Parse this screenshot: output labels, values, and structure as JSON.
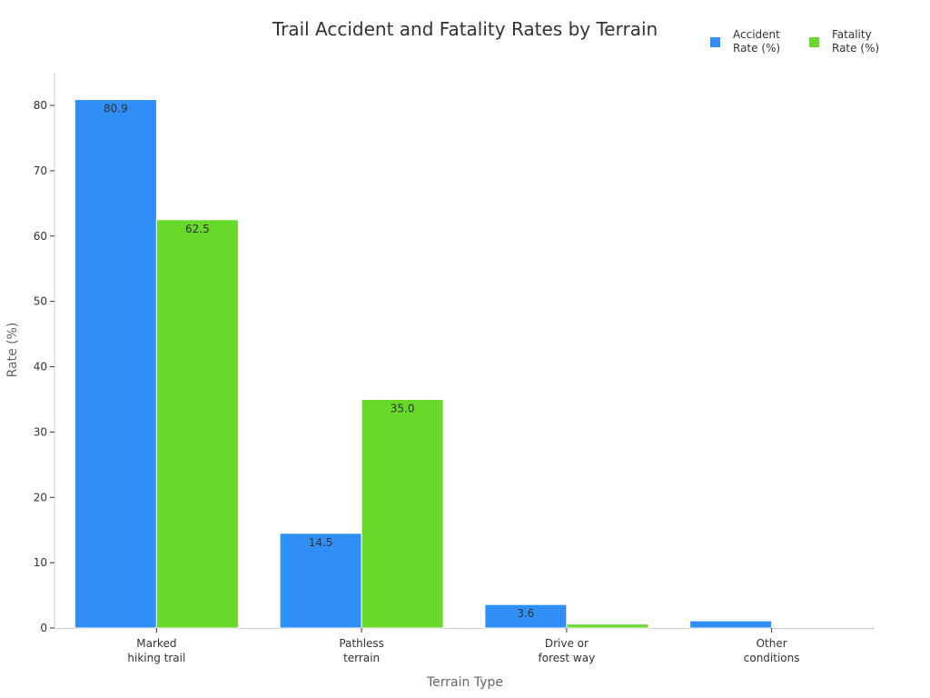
{
  "chart_data": {
    "type": "bar",
    "title": "Trail Accident and Fatality Rates by Terrain",
    "xlabel": "Terrain Type",
    "ylabel": "Rate (%)",
    "ylim": [
      0,
      85
    ],
    "yticks": [
      0,
      10,
      20,
      30,
      40,
      50,
      60,
      70,
      80
    ],
    "categories": [
      "Marked hiking trail",
      "Pathless terrain",
      "Drive or forest way",
      "Other conditions"
    ],
    "category_lines": [
      [
        "Marked",
        "hiking trail"
      ],
      [
        "Pathless",
        "terrain"
      ],
      [
        "Drive or",
        "forest way"
      ],
      [
        "Other",
        "conditions"
      ]
    ],
    "series": [
      {
        "name": "Accident Rate (%)",
        "color": "#2f8ff7",
        "values": [
          80.9,
          14.5,
          3.6,
          1.1
        ],
        "labels": [
          "80.9",
          "14.5",
          "3.6",
          ""
        ]
      },
      {
        "name": "Fatality Rate (%)",
        "color": "#66d92a",
        "values": [
          62.5,
          35.0,
          0.6,
          0.0
        ],
        "labels": [
          "62.5",
          "35.0",
          "",
          ""
        ]
      }
    ],
    "legend_position": "top-right",
    "grid": false
  },
  "legend": [
    {
      "line1": "Accident",
      "line2": "Rate (%)",
      "color": "#2f8ff7"
    },
    {
      "line1": "Fatality",
      "line2": "Rate (%)",
      "color": "#66d92a"
    }
  ]
}
